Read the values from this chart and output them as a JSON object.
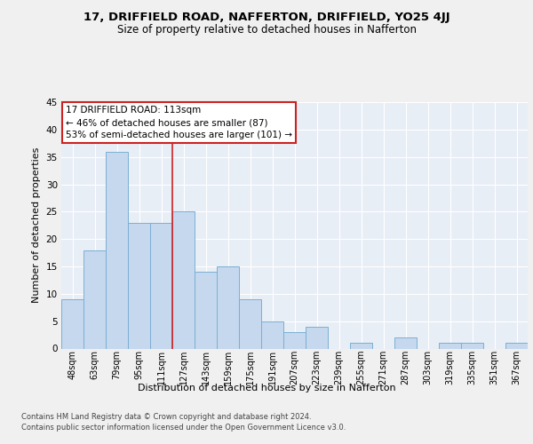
{
  "title1": "17, DRIFFIELD ROAD, NAFFERTON, DRIFFIELD, YO25 4JJ",
  "title2": "Size of property relative to detached houses in Nafferton",
  "xlabel": "Distribution of detached houses by size in Nafferton",
  "ylabel": "Number of detached properties",
  "categories": [
    "48sqm",
    "63sqm",
    "79sqm",
    "95sqm",
    "111sqm",
    "127sqm",
    "143sqm",
    "159sqm",
    "175sqm",
    "191sqm",
    "207sqm",
    "223sqm",
    "239sqm",
    "255sqm",
    "271sqm",
    "287sqm",
    "303sqm",
    "319sqm",
    "335sqm",
    "351sqm",
    "367sqm"
  ],
  "values": [
    9,
    18,
    36,
    23,
    23,
    25,
    14,
    15,
    9,
    5,
    3,
    4,
    0,
    1,
    0,
    2,
    0,
    1,
    1,
    0,
    1
  ],
  "bar_color": "#c5d8ee",
  "bar_edge_color": "#7bafd4",
  "background_color": "#e8eef6",
  "grid_color": "#ffffff",
  "vline_x": 4.5,
  "vline_color": "#cc2222",
  "annotation_title": "17 DRIFFIELD ROAD: 113sqm",
  "annotation_line1": "← 46% of detached houses are smaller (87)",
  "annotation_line2": "53% of semi-detached houses are larger (101) →",
  "annotation_box_color": "#ffffff",
  "annotation_box_edge": "#cc2222",
  "ylim": [
    0,
    45
  ],
  "yticks": [
    0,
    5,
    10,
    15,
    20,
    25,
    30,
    35,
    40,
    45
  ],
  "footer1": "Contains HM Land Registry data © Crown copyright and database right 2024.",
  "footer2": "Contains public sector information licensed under the Open Government Licence v3.0.",
  "fig_bg": "#f0f0f0"
}
